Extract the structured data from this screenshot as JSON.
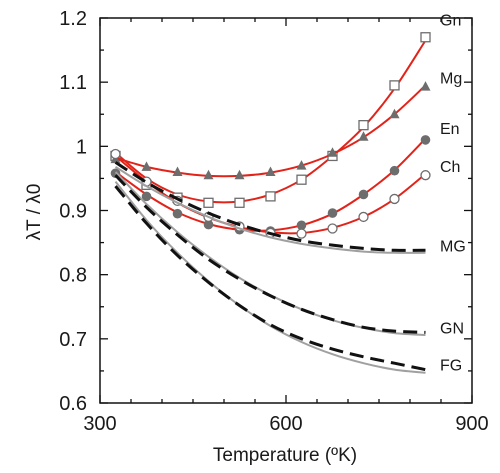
{
  "chart_data": {
    "type": "line",
    "xlabel": "Temperature (ºK)",
    "ylabel": "λT / λ0",
    "xlim": [
      300,
      900
    ],
    "ylim": [
      0.6,
      1.2
    ],
    "x_ticks": [
      "300",
      "600",
      "900"
    ],
    "y_ticks": [
      "0.6",
      "0.7",
      "0.8",
      "0.9",
      "1",
      "1.1",
      "1.2"
    ],
    "grid": false,
    "legend": "inline labels at right end of each curve",
    "series": [
      {
        "name": "Gn",
        "style": "red line with open square markers",
        "x": [
          325,
          375,
          425,
          475,
          525,
          575,
          625,
          675,
          725,
          775,
          825
        ],
        "y": [
          0.985,
          0.94,
          0.92,
          0.912,
          0.912,
          0.922,
          0.948,
          0.985,
          1.033,
          1.095,
          1.17
        ],
        "fit": {
          "x": [
            325,
            375,
            425,
            475,
            525,
            575,
            625,
            675,
            725,
            775,
            825
          ],
          "y": [
            0.99,
            0.95,
            0.925,
            0.914,
            0.914,
            0.925,
            0.948,
            0.985,
            1.03,
            1.09,
            1.165
          ]
        }
      },
      {
        "name": "Mg",
        "style": "red line with filled triangle markers",
        "x": [
          325,
          375,
          425,
          475,
          525,
          575,
          625,
          675,
          725,
          775,
          825
        ],
        "y": [
          0.98,
          0.968,
          0.96,
          0.955,
          0.955,
          0.96,
          0.97,
          0.99,
          1.015,
          1.05,
          1.093
        ],
        "fit": {
          "x": [
            325,
            375,
            425,
            475,
            525,
            575,
            625,
            675,
            725,
            775,
            825
          ],
          "y": [
            0.982,
            0.968,
            0.959,
            0.954,
            0.954,
            0.959,
            0.97,
            0.988,
            1.014,
            1.05,
            1.095
          ]
        }
      },
      {
        "name": "En",
        "style": "red line with filled circle markers",
        "x": [
          325,
          375,
          425,
          475,
          525,
          575,
          625,
          675,
          725,
          775,
          825
        ],
        "y": [
          0.958,
          0.922,
          0.895,
          0.878,
          0.87,
          0.868,
          0.877,
          0.896,
          0.925,
          0.962,
          1.01
        ],
        "fit": {
          "x": [
            325,
            375,
            425,
            475,
            525,
            575,
            625,
            675,
            725,
            775,
            825
          ],
          "y": [
            0.96,
            0.925,
            0.897,
            0.879,
            0.87,
            0.869,
            0.877,
            0.895,
            0.925,
            0.963,
            1.012
          ]
        }
      },
      {
        "name": "Ch",
        "style": "red line with open circle markers",
        "x": [
          325,
          375,
          425,
          475,
          525,
          575,
          625,
          675,
          725,
          775,
          825
        ],
        "y": [
          0.988,
          0.945,
          0.915,
          0.89,
          0.875,
          0.865,
          0.864,
          0.872,
          0.89,
          0.918,
          0.955
        ],
        "fit": {
          "x": [
            325,
            375,
            425,
            475,
            525,
            575,
            625,
            675,
            725,
            775,
            825
          ],
          "y": [
            0.985,
            0.945,
            0.912,
            0.889,
            0.874,
            0.866,
            0.865,
            0.873,
            0.89,
            0.918,
            0.957
          ]
        }
      },
      {
        "name": "MG",
        "style": "black dashed line with grey solid line",
        "x": [
          325,
          375,
          425,
          475,
          525,
          575,
          625,
          675,
          725,
          775,
          825
        ],
        "y": [
          0.975,
          0.944,
          0.918,
          0.896,
          0.878,
          0.864,
          0.853,
          0.846,
          0.841,
          0.838,
          0.838
        ],
        "fit": {
          "x": [
            325,
            375,
            425,
            475,
            525,
            575,
            625,
            675,
            725,
            775,
            825
          ],
          "y": [
            0.968,
            0.938,
            0.912,
            0.89,
            0.872,
            0.858,
            0.848,
            0.841,
            0.836,
            0.834,
            0.834
          ]
        }
      },
      {
        "name": "GN",
        "style": "black dashed line with grey solid line",
        "x": [
          325,
          375,
          425,
          475,
          525,
          575,
          625,
          675,
          725,
          775,
          825
        ],
        "y": [
          0.955,
          0.905,
          0.862,
          0.824,
          0.793,
          0.767,
          0.746,
          0.73,
          0.718,
          0.712,
          0.71
        ],
        "fit": {
          "x": [
            325,
            375,
            425,
            475,
            525,
            575,
            625,
            675,
            725,
            775,
            825
          ],
          "y": [
            0.96,
            0.91,
            0.866,
            0.828,
            0.795,
            0.768,
            0.746,
            0.729,
            0.717,
            0.709,
            0.706
          ]
        }
      },
      {
        "name": "FG",
        "style": "black dashed line with grey solid line",
        "x": [
          325,
          375,
          425,
          475,
          525,
          575,
          625,
          675,
          725,
          775,
          825
        ],
        "y": [
          0.938,
          0.88,
          0.83,
          0.788,
          0.752,
          0.722,
          0.7,
          0.684,
          0.672,
          0.662,
          0.652
        ],
        "fit": {
          "x": [
            325,
            375,
            425,
            475,
            525,
            575,
            625,
            675,
            725,
            775,
            825
          ],
          "y": [
            0.945,
            0.885,
            0.834,
            0.79,
            0.752,
            0.72,
            0.695,
            0.676,
            0.662,
            0.652,
            0.647
          ]
        }
      }
    ]
  },
  "colors": {
    "red_line": "#e2231a",
    "marker": "#6d6d6d",
    "dash_line": "#111111",
    "grey_line": "#a0a0a0",
    "axis": "#111111"
  }
}
